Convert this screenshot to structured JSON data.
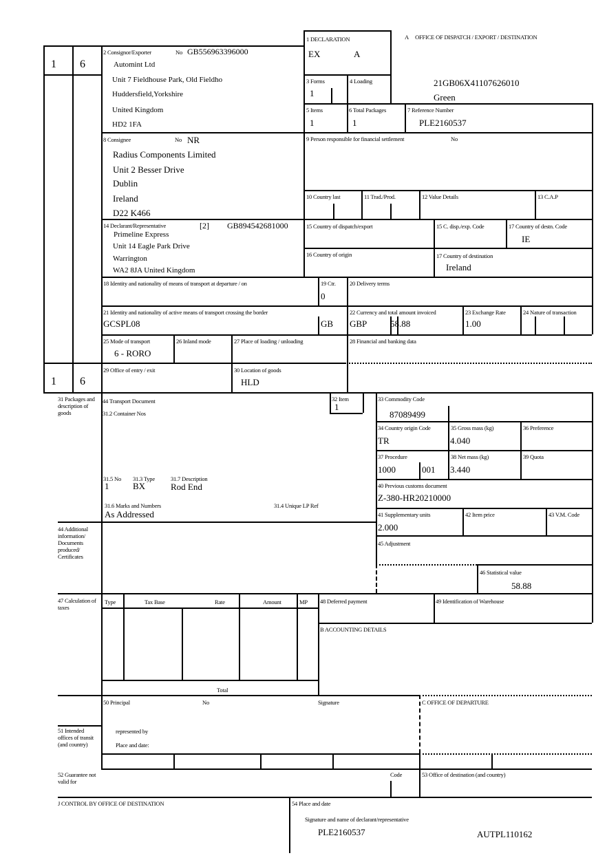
{
  "header": {
    "office_label": "A     OFFICE OF DISPATCH / EXPORT / DESTINATION",
    "lrn": "21GB06X41107626010",
    "route": "Green"
  },
  "left_column": {
    "top_a": "1",
    "top_b": "6",
    "bottom_a": "1",
    "bottom_b": "6"
  },
  "box1": {
    "label": "1 DECLARATION",
    "type": "EX",
    "subtype": "A"
  },
  "box2": {
    "label": "2 Consignor/Exporter",
    "no_label": "No",
    "eori": "GB556963396000",
    "lines": [
      "Automint Ltd",
      "Unit 7 Fieldhouse Park, Old Fieldho",
      "Huddersfield,Yorkshire",
      "United Kingdom",
      "HD2 1FA"
    ]
  },
  "box3": {
    "label": "3 Forms",
    "value": "1"
  },
  "box4": {
    "label": "4 Loading"
  },
  "box5": {
    "label": "5 Items",
    "value": "1"
  },
  "box6": {
    "label": "6 Total Packages",
    "value": "1"
  },
  "box7": {
    "label": "7 Reference Number",
    "value": "PLE2160537"
  },
  "box8": {
    "label": "8 Consignee",
    "no_label": "No",
    "no_value": "NR",
    "lines": [
      "Radius Components Limited",
      "Unit 2 Besser Drive",
      "Dublin",
      "Ireland",
      "D22 K466"
    ]
  },
  "box9": {
    "label": "9 Person responsible for financial settlement",
    "no_label": "No"
  },
  "box10": {
    "label": "10 Country last"
  },
  "box11": {
    "label": "11 Trad./Prod."
  },
  "box12": {
    "label": "12 Value Details"
  },
  "box13": {
    "label": "13 C.A.P"
  },
  "box14": {
    "label": "14 Declarant/Representative",
    "status": "[2]",
    "eori": "GB894542681000",
    "lines": [
      "Primeline Express",
      "Unit 14 Eagle Park Drive",
      "Warrington",
      "WA2 8JA United Kingdom"
    ]
  },
  "box15": {
    "label": "15 Country of dispatch/export",
    "code_label": "15 C. disp./exp. Code"
  },
  "box17a": {
    "label": "17 Country of destn. Code",
    "value": "IE"
  },
  "box16": {
    "label": "16 Country of origin"
  },
  "box17": {
    "label": "17 Country of destination",
    "value": "Ireland"
  },
  "box18": {
    "label": "18 Identity and nationality of means of transport at departure / on"
  },
  "box19": {
    "label": "19 Ctr.",
    "value": "0"
  },
  "box20": {
    "label": "20 Delivery terms"
  },
  "box21": {
    "label": "21 Identity and nationality of active means of transport crossing the border",
    "identity": "GCSPL08",
    "nationality": "GB"
  },
  "box22": {
    "label": "22 Currency and total amount invoiced",
    "currency": "GBP",
    "amount": "58.88"
  },
  "box23": {
    "label": "23 Exchange Rate",
    "value": "1.00"
  },
  "box24": {
    "label": "24 Nature of transaction"
  },
  "box25": {
    "label": "25 Mode of transport",
    "value": "6 - RORO"
  },
  "box26": {
    "label": "26 Inland mode"
  },
  "box27": {
    "label": "27 Place of loading / unloading"
  },
  "box28": {
    "label": "28 Financial and banking data"
  },
  "box29": {
    "label": "29 Office of entry / exit"
  },
  "box30": {
    "label": "30 Location of goods",
    "value": "HLD"
  },
  "box31": {
    "label": "31 Packages and description of goods",
    "transport_doc_label": "44 Transport Document",
    "container_label": "31.2 Container Nos",
    "no_label": "31.5 No",
    "no_value": "1",
    "type_label": "31.3 Type",
    "type_value": "BX",
    "desc_label": "31.7 Description",
    "desc_value": "Rod End",
    "marks_label": "31.6 Marks and Numbers",
    "marks_value": "As Addressed",
    "ulp_label": "31.4 Unique LP Ref"
  },
  "box32": {
    "label": "32 Item",
    "value": "1"
  },
  "box33": {
    "label": "33 Commodity Code",
    "value": "87089499"
  },
  "box34": {
    "label": "34 Country origin Code",
    "value": "TR"
  },
  "box35": {
    "label": "35 Gross mass (kg)",
    "value": "4.040"
  },
  "box36": {
    "label": "36 Preference"
  },
  "box37": {
    "label": "37 Procedure",
    "value": "1000",
    "value2": "001"
  },
  "box38": {
    "label": "38 Net mass (kg)",
    "value": "3.440"
  },
  "box39": {
    "label": "39 Quota"
  },
  "box40": {
    "label": "40 Previous customs document",
    "value": "Z-380-HR20210000"
  },
  "box41": {
    "label": "41 Supplementary units",
    "value": "2.000"
  },
  "box42": {
    "label": "42 Item price"
  },
  "box43": {
    "label": "43 V.M. Code"
  },
  "box44": {
    "label": "44 Additional information/ Documents produced/ Certificates"
  },
  "box45": {
    "label": "45 Adjustment"
  },
  "box46": {
    "label": "46 Statistical value",
    "value": "58.88"
  },
  "box47": {
    "label": "47 Calculation of taxes",
    "columns": [
      "Type",
      "Tax Base",
      "Rate",
      "Amount",
      "MP"
    ],
    "total_label": "Total"
  },
  "box48": {
    "label": "48 Deferred payment"
  },
  "box49": {
    "label": "49 Identification of Warehouse"
  },
  "boxB": {
    "label": "B ACCOUNTING DETAILS"
  },
  "box50": {
    "label": "50 Principal",
    "no_label": "No",
    "signature_label": "Signature",
    "represented_label": "represented by",
    "place_label": "Place and date:"
  },
  "boxC": {
    "label": "C OFFICE OF DEPARTURE"
  },
  "box51": {
    "label": "51 Intended offices of transit (and country)"
  },
  "box52": {
    "label": "52 Guarantee not valid for",
    "code_label": "Code"
  },
  "box53": {
    "label": "53 Office of destination (and country)"
  },
  "boxJ": {
    "label": "J CONTROL BY OFFICE OF DESTINATION"
  },
  "box54": {
    "label": "54 Place and date",
    "signature_label": "Signature and name of declarant/representative",
    "reference": "PLE2160537",
    "auth": "AUTPL110162"
  }
}
